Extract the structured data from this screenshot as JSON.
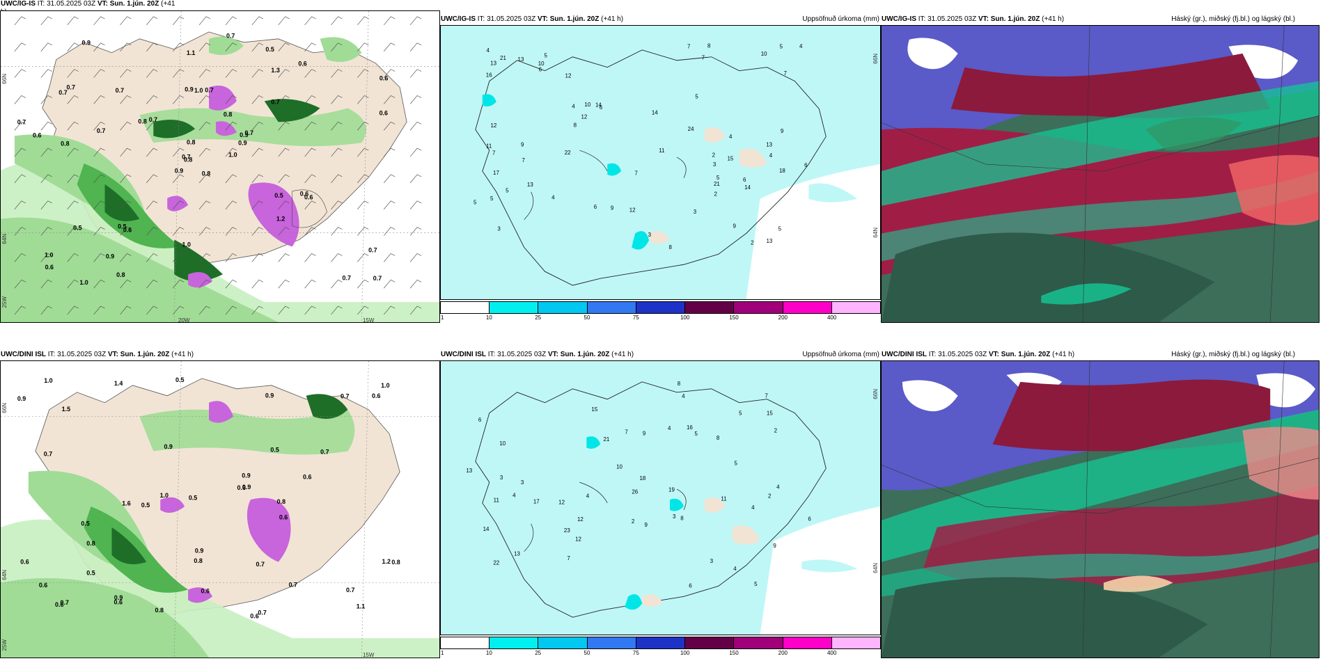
{
  "panels": [
    {
      "id": "top-left",
      "title_model": "UWC/IG-IS",
      "title_it": "IT: 31.05.2025 03Z",
      "title_vt_label": "VT:",
      "title_vt": "Sun. 1.jún. 20Z",
      "title_lead": "(+41",
      "title_lead2": "h)",
      "field_title": "",
      "coords": [
        "66N",
        "64N",
        "25W",
        "20W",
        "15W"
      ],
      "labels": [
        "0.8",
        "0.7",
        "0.8",
        "1.0",
        "0.9",
        "0.6",
        "0.5",
        "0.7",
        "1.3",
        "1.0",
        "0.9",
        "0.7",
        "0.8",
        "0.6",
        "0.9",
        "0.7",
        "1.0",
        "0.9",
        "0.8",
        "0.5",
        "0.7",
        "0.6",
        "0.9",
        "1.0",
        "0.7",
        "0.6",
        "0.7",
        "1.1",
        "0.6",
        "0.5",
        "0.6",
        "0.7",
        "1.0",
        "0.8",
        "0.7",
        "0.6",
        "0.5",
        "0.7",
        "0.7",
        "0.6",
        "0.7",
        "0.8",
        "0.7",
        "1.2",
        "0.8",
        "0.7",
        "0.9"
      ]
    },
    {
      "id": "top-middle",
      "title_model": "UWC/IG-IS",
      "title_it": "IT: 31.05.2025 03Z",
      "title_vt_label": "VT:",
      "title_vt": "Sun. 1.jún. 20Z",
      "title_lead": "(+41 h)",
      "field_title": "Uppsöfnuð úrkoma (mm)",
      "coords": [
        "66N",
        "64N"
      ],
      "labels": [
        "3",
        "4",
        "3",
        "5",
        "6",
        "9",
        "5",
        "7",
        "4",
        "8",
        "16",
        "11",
        "13",
        "5",
        "6",
        "9",
        "7",
        "11",
        "14",
        "13",
        "4",
        "10",
        "8",
        "18",
        "7",
        "10",
        "5",
        "7",
        "6",
        "4",
        "3",
        "3",
        "12",
        "22",
        "13",
        "14",
        "21",
        "9",
        "12",
        "5",
        "7",
        "8",
        "13",
        "9",
        "6",
        "4",
        "5",
        "21",
        "24",
        "12",
        "6",
        "10",
        "5",
        "2",
        "2",
        "2",
        "5",
        "4",
        "7",
        "13",
        "15",
        "12",
        "14",
        "17"
      ]
    },
    {
      "id": "top-right",
      "title_model": "UWC/IG-IS",
      "title_it": "IT: 31.05.2025 03Z",
      "title_vt_label": "VT:",
      "title_vt": "Sun. 1.jún. 20Z",
      "title_lead": "(+41 h)",
      "field_title": "Háský (gr.), miðský (fj.bl.) og lágský (bl.)",
      "coords": [],
      "labels": []
    },
    {
      "id": "bottom-left",
      "title_model": "UWC/DINI ISL",
      "title_it": "IT: 31.05.2025 03Z",
      "title_vt_label": "VT:",
      "title_vt": "Sun. 1.jún. 20Z",
      "title_lead": "(+41 h)",
      "field_title": "",
      "coords": [
        "66N",
        "64N",
        "25W",
        "15W"
      ],
      "labels": [
        "0.8",
        "0.6",
        "0.9",
        "0.7",
        "1.4",
        "1.5",
        "1.6",
        "1.1",
        "0.5",
        "0.9",
        "0.7",
        "0.6",
        "1.0",
        "0.8",
        "0.9",
        "0.6",
        "0.7",
        "0.6",
        "0.5",
        "0.9",
        "0.7",
        "1.0",
        "0.9",
        "0.6",
        "0.7",
        "0.5",
        "0.6",
        "0.8",
        "1.0",
        "0.6",
        "0.5",
        "0.7",
        "0.9",
        "0.6",
        "0.5",
        "0.8",
        "1.2",
        "0.6",
        "0.5",
        "0.7",
        "0.9",
        "0.6",
        "0.8",
        "0.7"
      ]
    },
    {
      "id": "bottom-middle",
      "title_model": "UWC/DINI ISL",
      "title_it": "IT: 31.05.2025 03Z",
      "title_vt_label": "VT:",
      "title_vt": "Sun. 1.jún. 20Z",
      "title_lead": "(+41 h)",
      "field_title": "Uppsöfnuð úrkoma (mm)",
      "coords": [
        "66N",
        "64N"
      ],
      "labels": [
        "5",
        "4",
        "3",
        "6",
        "9",
        "10",
        "13",
        "12",
        "8",
        "7",
        "5",
        "4",
        "12",
        "15",
        "19",
        "14",
        "11",
        "18",
        "13",
        "22",
        "7",
        "9",
        "5",
        "6",
        "4",
        "3",
        "17",
        "26",
        "10",
        "15",
        "8",
        "11",
        "23",
        "16",
        "21",
        "4",
        "2",
        "3",
        "5",
        "6",
        "12",
        "9",
        "7",
        "8",
        "4",
        "3",
        "2",
        "4",
        "4",
        "2"
      ]
    },
    {
      "id": "bottom-right",
      "title_model": "UWC/DINI ISL",
      "title_it": "IT: 31.05.2025 03Z",
      "title_vt_label": "VT:",
      "title_vt": "Sun. 1.jún. 20Z",
      "title_lead": "(+41 h)",
      "field_title": "Háský (gr.), miðský (fj.bl.) og lágský (bl.)",
      "coords": [],
      "labels": []
    }
  ],
  "legend": {
    "ticks": [
      "1",
      "10",
      "25",
      "50",
      "75",
      "100",
      "150",
      "200",
      "400"
    ],
    "colors": [
      "#ffffff",
      "#00f0f0",
      "#00c8f0",
      "#3278f0",
      "#1e32c8",
      "#640046",
      "#a0007a",
      "#ff00c8",
      "#ffb4ff"
    ]
  }
}
